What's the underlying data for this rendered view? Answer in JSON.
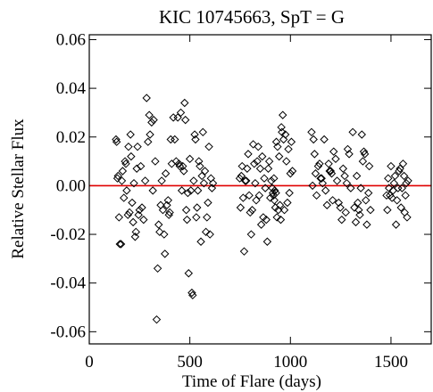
{
  "chart_data": {
    "type": "scatter",
    "title": "KIC 10745663, SpT = G",
    "xlabel": "Time of Flare (days)",
    "ylabel": "Relative Stellar Flux",
    "xlim": [
      0,
      1700
    ],
    "ylim": [
      -0.065,
      0.062
    ],
    "x_ticks": [
      0,
      500,
      1000,
      1500
    ],
    "x_tick_labels": [
      "0",
      "500",
      "1000",
      "1500"
    ],
    "y_ticks": [
      -0.06,
      -0.04,
      -0.02,
      0.0,
      0.02,
      0.04,
      0.06
    ],
    "y_tick_labels": [
      "-0.06",
      "-0.04",
      "-0.02",
      "0.00",
      "0.02",
      "0.04",
      "0.06"
    ],
    "reference_line": {
      "y": 0.0,
      "color": "#e00000"
    },
    "marker": "open-diamond",
    "grid": false,
    "points": [
      [
        133,
        0.019
      ],
      [
        136,
        0.018
      ],
      [
        140,
        0.003
      ],
      [
        143,
        0.004
      ],
      [
        148,
        -0.013
      ],
      [
        152,
        -0.024
      ],
      [
        158,
        -0.024
      ],
      [
        162,
        0.002
      ],
      [
        166,
        0.006
      ],
      [
        172,
        -0.005
      ],
      [
        178,
        0.01
      ],
      [
        182,
        0.009
      ],
      [
        186,
        -0.002
      ],
      [
        192,
        -0.012
      ],
      [
        195,
        0.016
      ],
      [
        200,
        -0.011
      ],
      [
        205,
        0.021
      ],
      [
        208,
        0.012
      ],
      [
        213,
        -0.007
      ],
      [
        218,
        -0.015
      ],
      [
        222,
        0.001
      ],
      [
        228,
        -0.021
      ],
      [
        232,
        -0.019
      ],
      [
        236,
        0.007
      ],
      [
        240,
        0.016
      ],
      [
        245,
        -0.012
      ],
      [
        250,
        -0.01
      ],
      [
        256,
        0.008
      ],
      [
        262,
        -0.009
      ],
      [
        270,
        -0.014
      ],
      [
        278,
        0.002
      ],
      [
        285,
        0.036
      ],
      [
        292,
        0.018
      ],
      [
        298,
        0.029
      ],
      [
        302,
        0.021
      ],
      [
        310,
        0.026
      ],
      [
        316,
        -0.002
      ],
      [
        320,
        0.027
      ],
      [
        328,
        0.01
      ],
      [
        335,
        -0.055
      ],
      [
        340,
        -0.034
      ],
      [
        345,
        -0.016
      ],
      [
        350,
        -0.019
      ],
      [
        355,
        -0.008
      ],
      [
        360,
        0.002
      ],
      [
        366,
        -0.01
      ],
      [
        372,
        -0.02
      ],
      [
        376,
        -0.028
      ],
      [
        380,
        0.005
      ],
      [
        386,
        -0.008
      ],
      [
        392,
        -0.006
      ],
      [
        396,
        -0.012
      ],
      [
        400,
        -0.011
      ],
      [
        405,
        0.019
      ],
      [
        410,
        0.009
      ],
      [
        418,
        0.028
      ],
      [
        425,
        0.019
      ],
      [
        432,
        0.01
      ],
      [
        440,
        0.028
      ],
      [
        446,
        0.009
      ],
      [
        450,
        0.008
      ],
      [
        455,
        0.03
      ],
      [
        460,
        -0.002
      ],
      [
        465,
        0.008
      ],
      [
        470,
        0.006
      ],
      [
        474,
        0.034
      ],
      [
        478,
        0.027
      ],
      [
        482,
        -0.01
      ],
      [
        486,
        -0.014
      ],
      [
        490,
        -0.003
      ],
      [
        494,
        -0.036
      ],
      [
        500,
        0.011
      ],
      [
        505,
        -0.002
      ],
      [
        510,
        -0.044
      ],
      [
        514,
        -0.045
      ],
      [
        519,
        0.002
      ],
      [
        524,
        0.021
      ],
      [
        528,
        0.019
      ],
      [
        532,
        -0.013
      ],
      [
        536,
        -0.009
      ],
      [
        540,
        -0.002
      ],
      [
        545,
        0.01
      ],
      [
        550,
        0.008
      ],
      [
        555,
        -0.023
      ],
      [
        560,
        0.004
      ],
      [
        565,
        0.022
      ],
      [
        570,
        0.001
      ],
      [
        575,
        0.006
      ],
      [
        580,
        -0.019
      ],
      [
        585,
        -0.013
      ],
      [
        590,
        -0.007
      ],
      [
        595,
        0.016
      ],
      [
        600,
        -0.02
      ],
      [
        605,
        0.003
      ],
      [
        610,
        -0.001
      ],
      [
        615,
        0.001
      ],
      [
        748,
        0.003
      ],
      [
        752,
        -0.009
      ],
      [
        756,
        0.004
      ],
      [
        760,
        0.008
      ],
      [
        765,
        -0.005
      ],
      [
        770,
        -0.027
      ],
      [
        775,
        0.002
      ],
      [
        780,
        0.002
      ],
      [
        785,
        0.007
      ],
      [
        790,
        0.013
      ],
      [
        795,
        -0.004
      ],
      [
        800,
        -0.011
      ],
      [
        805,
        -0.02
      ],
      [
        810,
        -0.01
      ],
      [
        815,
        0.017
      ],
      [
        820,
        0.009
      ],
      [
        825,
        0.001
      ],
      [
        830,
        -0.006
      ],
      [
        835,
        0.01
      ],
      [
        840,
        0.016
      ],
      [
        845,
        -0.004
      ],
      [
        850,
        0.007
      ],
      [
        855,
        -0.016
      ],
      [
        860,
        0.012
      ],
      [
        865,
        -0.013
      ],
      [
        870,
        0.003
      ],
      [
        875,
        -0.001
      ],
      [
        880,
        -0.014
      ],
      [
        885,
        -0.023
      ],
      [
        890,
        0.007
      ],
      [
        895,
        0.01
      ],
      [
        900,
        -0.005
      ],
      [
        905,
        0.002
      ],
      [
        910,
        -0.001
      ],
      [
        913,
        -0.003
      ],
      [
        916,
        -0.004
      ],
      [
        918,
        0.003
      ],
      [
        920,
        -0.006
      ],
      [
        922,
        -0.002
      ],
      [
        925,
        -0.009
      ],
      [
        928,
        -0.003
      ],
      [
        930,
        0.018
      ],
      [
        933,
        -0.013
      ],
      [
        936,
        0.016
      ],
      [
        940,
        -0.01
      ],
      [
        944,
        0.012
      ],
      [
        948,
        -0.008
      ],
      [
        952,
        -0.014
      ],
      [
        955,
        0.024
      ],
      [
        958,
        0.022
      ],
      [
        962,
        0.029
      ],
      [
        966,
        0.019
      ],
      [
        970,
        -0.01
      ],
      [
        975,
        0.021
      ],
      [
        980,
        0.01
      ],
      [
        985,
        -0.007
      ],
      [
        990,
        0.015
      ],
      [
        995,
        -0.003
      ],
      [
        1000,
        0.005
      ],
      [
        1005,
        0.018
      ],
      [
        1010,
        0.006
      ],
      [
        1105,
        0.022
      ],
      [
        1110,
        0.0
      ],
      [
        1115,
        0.019
      ],
      [
        1120,
        0.013
      ],
      [
        1125,
        0.005
      ],
      [
        1130,
        -0.004
      ],
      [
        1138,
        0.008
      ],
      [
        1145,
        0.009
      ],
      [
        1150,
        0.003
      ],
      [
        1155,
        0.003
      ],
      [
        1160,
        0.001
      ],
      [
        1168,
        0.019
      ],
      [
        1175,
        -0.002
      ],
      [
        1182,
        -0.008
      ],
      [
        1190,
        0.009
      ],
      [
        1195,
        0.006
      ],
      [
        1200,
        0.006
      ],
      [
        1205,
        0.005
      ],
      [
        1210,
        -0.006
      ],
      [
        1215,
        0.014
      ],
      [
        1225,
        0.011
      ],
      [
        1232,
        0.002
      ],
      [
        1240,
        -0.007
      ],
      [
        1248,
        -0.009
      ],
      [
        1255,
        -0.014
      ],
      [
        1262,
        0.007
      ],
      [
        1270,
        0.004
      ],
      [
        1275,
        -0.011
      ],
      [
        1280,
        0.001
      ],
      [
        1285,
        0.015
      ],
      [
        1292,
        0.013
      ],
      [
        1300,
        -0.001
      ],
      [
        1310,
        0.022
      ],
      [
        1318,
        -0.009
      ],
      [
        1325,
        -0.015
      ],
      [
        1330,
        0.004
      ],
      [
        1335,
        -0.007
      ],
      [
        1340,
        -0.01
      ],
      [
        1345,
        -0.012
      ],
      [
        1350,
        -0.001
      ],
      [
        1355,
        0.021
      ],
      [
        1360,
        0.01
      ],
      [
        1365,
        0.014
      ],
      [
        1370,
        0.013
      ],
      [
        1375,
        -0.006
      ],
      [
        1380,
        -0.016
      ],
      [
        1388,
        -0.003
      ],
      [
        1392,
        0.008
      ],
      [
        1398,
        -0.01
      ],
      [
        1478,
        -0.004
      ],
      [
        1482,
        -0.01
      ],
      [
        1486,
        0.003
      ],
      [
        1490,
        -0.001
      ],
      [
        1495,
        -0.004
      ],
      [
        1500,
        0.008
      ],
      [
        1505,
        -0.005
      ],
      [
        1510,
        -0.002
      ],
      [
        1515,
        0.001
      ],
      [
        1520,
        0.004
      ],
      [
        1525,
        -0.016
      ],
      [
        1530,
        -0.006
      ],
      [
        1535,
        -0.001
      ],
      [
        1540,
        0.006
      ],
      [
        1545,
        0.007
      ],
      [
        1550,
        -0.009
      ],
      [
        1555,
        -0.001
      ],
      [
        1560,
        0.009
      ],
      [
        1565,
        0.004
      ],
      [
        1568,
        -0.011
      ],
      [
        1572,
        -0.004
      ],
      [
        1576,
        0.001
      ],
      [
        1580,
        -0.013
      ],
      [
        1585,
        0.002
      ]
    ]
  }
}
